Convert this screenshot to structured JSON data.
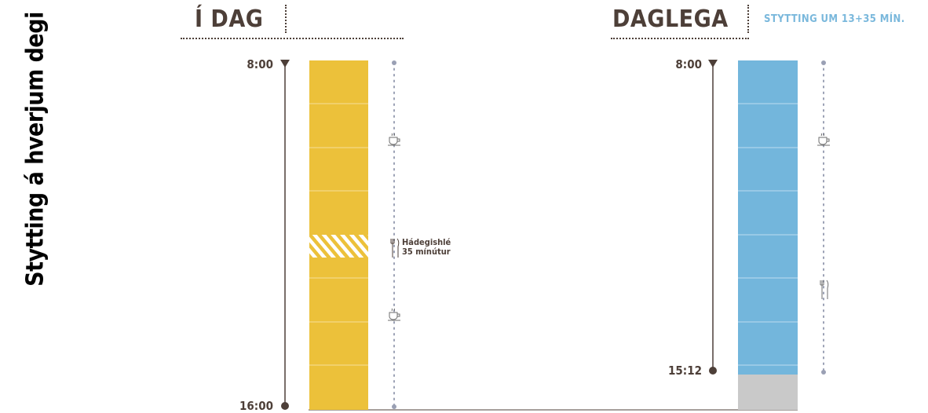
{
  "side_title": "Stytting á hverjum degi",
  "left": {
    "title": "Í DAG",
    "start_time": "8:00",
    "end_time": "16:00",
    "lunch_label_line1": "Hádegishlé",
    "lunch_label_line2": "35 mínútur",
    "bar_color": "#ecc13a",
    "icons": [
      "coffee-icon",
      "fork-knife-icon",
      "coffee-icon"
    ]
  },
  "right": {
    "title": "DAGLEGA",
    "note": "STYTTING UM 13+35 MÍN.",
    "start_time": "8:00",
    "end_time": "15:12",
    "bar_color": "#73b6dc",
    "reduction_color": "#c9c9c9",
    "icons": [
      "coffee-icon",
      "fork-knife-icon"
    ]
  },
  "colors": {
    "text": "#4d3f38",
    "accent": "#7ab8dc",
    "dots": "#9aa0b4"
  }
}
